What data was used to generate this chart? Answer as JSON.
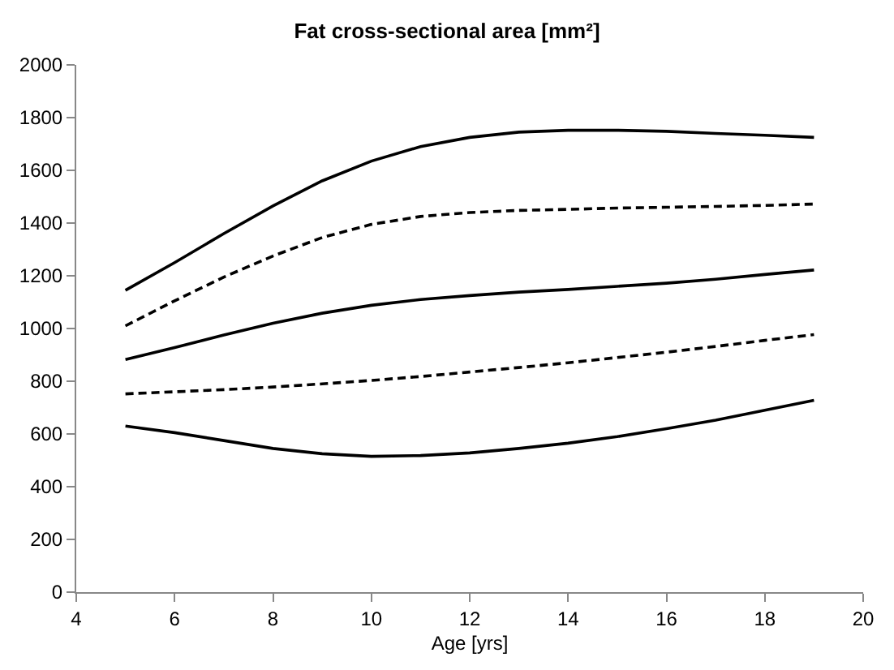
{
  "chart_data": {
    "type": "line",
    "title": "Fat cross-sectional area [mm²]",
    "xlabel": "Age [yrs]",
    "x": [
      5,
      6,
      7,
      8,
      9,
      10,
      11,
      12,
      13,
      14,
      15,
      16,
      17,
      18,
      19
    ],
    "series": [
      {
        "color": "#000000",
        "line_style": "solid",
        "values": [
          1145,
          1250,
          1360,
          1465,
          1560,
          1635,
          1690,
          1725,
          1745,
          1752,
          1752,
          1748,
          1740,
          1733,
          1725
        ]
      },
      {
        "color": "#000000",
        "line_style": "dashed",
        "values": [
          1010,
          1105,
          1195,
          1275,
          1345,
          1395,
          1425,
          1440,
          1448,
          1452,
          1457,
          1460,
          1463,
          1467,
          1472
        ]
      },
      {
        "color": "#000000",
        "line_style": "solid",
        "values": [
          882,
          928,
          975,
          1020,
          1058,
          1088,
          1110,
          1125,
          1138,
          1148,
          1160,
          1172,
          1187,
          1205,
          1222
        ]
      },
      {
        "color": "#000000",
        "line_style": "dashed",
        "values": [
          752,
          760,
          768,
          778,
          790,
          803,
          818,
          835,
          852,
          870,
          890,
          910,
          932,
          955,
          977
        ]
      },
      {
        "color": "#000000",
        "line_style": "solid",
        "values": [
          630,
          605,
          575,
          545,
          525,
          515,
          518,
          528,
          545,
          565,
          590,
          620,
          652,
          690,
          728
        ]
      }
    ],
    "xlim": [
      4,
      20
    ],
    "xticks": [
      4,
      6,
      8,
      10,
      12,
      14,
      16,
      18,
      20
    ],
    "ylim": [
      0,
      2000
    ],
    "yticks": [
      0,
      200,
      400,
      600,
      800,
      1000,
      1200,
      1400,
      1600,
      1800,
      2000
    ],
    "marker": "none"
  }
}
